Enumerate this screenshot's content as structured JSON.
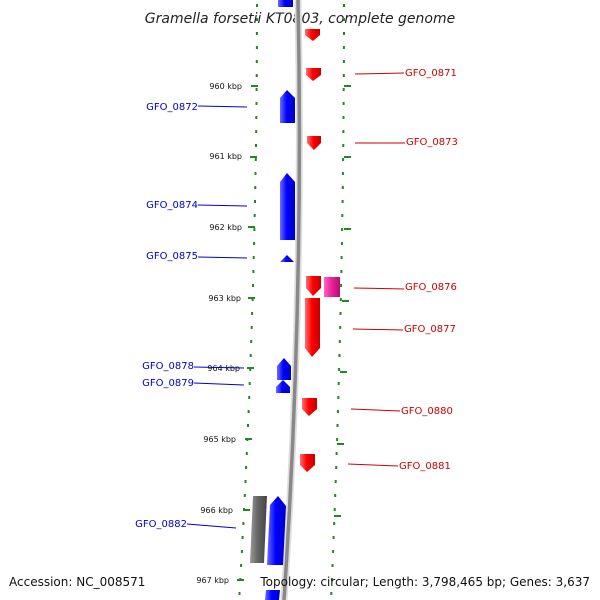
{
  "title": "Gramella forsetii KT0803, complete genome",
  "footer": {
    "accession": "Accession: NC_008571",
    "summary": "Topology: circular; Length: 3,798,465 bp; Genes: 3,637"
  },
  "colors": {
    "forward_gene": "#0000ff",
    "reverse_gene": "#ff0000",
    "reverse_gene_alt": "#ee2299",
    "other_feature": "#666666",
    "backbone": "#888888",
    "guide_dots": "#228822"
  },
  "ticks": [
    "960 kbp",
    "961 kbp",
    "962 kbp",
    "963 kbp",
    "964 kbp",
    "965 kbp",
    "966 kbp",
    "967 kbp"
  ],
  "genes_forward": [
    {
      "label": "GFO_0872"
    },
    {
      "label": "GFO_0874"
    },
    {
      "label": "GFO_0875"
    },
    {
      "label": "GFO_0878"
    },
    {
      "label": "GFO_0879"
    },
    {
      "label": "GFO_0882"
    }
  ],
  "genes_reverse": [
    {
      "label": "GFO_0871"
    },
    {
      "label": "GFO_0873"
    },
    {
      "label": "GFO_0876"
    },
    {
      "label": "GFO_0877"
    },
    {
      "label": "GFO_0880"
    },
    {
      "label": "GFO_0881"
    }
  ]
}
